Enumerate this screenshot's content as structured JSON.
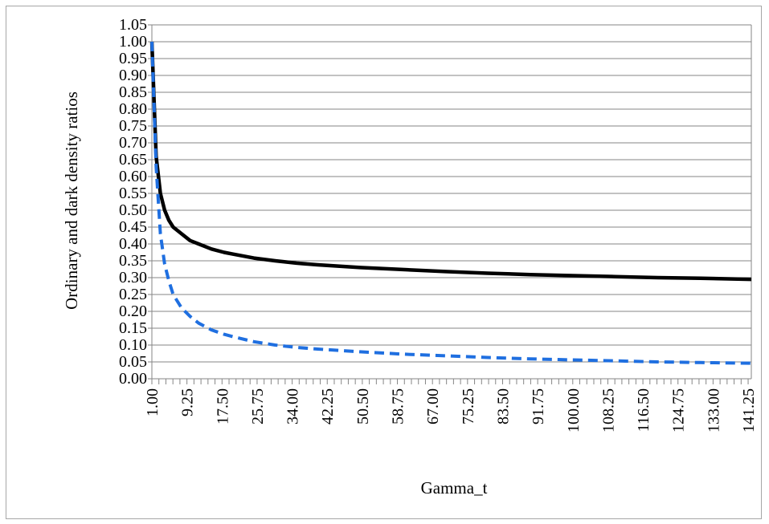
{
  "chart_data": {
    "type": "line",
    "xlabel": "Gamma_t",
    "ylabel": "Ordinary and dark density ratios",
    "x_tick_labels": [
      "1.00",
      "9.25",
      "17.50",
      "25.75",
      "34.00",
      "42.25",
      "50.50",
      "58.75",
      "67.00",
      "75.25",
      "83.50",
      "91.75",
      "100.00",
      "108.25",
      "116.50",
      "124.75",
      "133.00",
      "141.25"
    ],
    "y_tick_labels": [
      "0.00",
      "0.05",
      "0.10",
      "0.15",
      "0.20",
      "0.25",
      "0.30",
      "0.35",
      "0.40",
      "0.45",
      "0.50",
      "0.55",
      "0.60",
      "0.65",
      "0.70",
      "0.75",
      "0.80",
      "0.85",
      "0.90",
      "0.95",
      "1.00",
      "1.05"
    ],
    "xlim": [
      1.0,
      142.0
    ],
    "ylim": [
      0.0,
      1.05
    ],
    "grid": true,
    "legend": "none",
    "series": [
      {
        "color": "#000000",
        "line_style": "solid",
        "x": [
          1.0,
          2.0,
          3.0,
          4.0,
          5.0,
          6.0,
          8.0,
          10.0,
          12.0,
          15.0,
          18.0,
          20.0,
          25.0,
          30.0,
          35.0,
          40.0,
          50.0,
          60.0,
          70.0,
          80.0,
          90.0,
          100.0,
          110.0,
          120.0,
          130.0,
          142.0
        ],
        "values": [
          1.0,
          0.66,
          0.55,
          0.5,
          0.47,
          0.45,
          0.43,
          0.41,
          0.4,
          0.385,
          0.375,
          0.37,
          0.358,
          0.35,
          0.343,
          0.338,
          0.33,
          0.324,
          0.318,
          0.313,
          0.309,
          0.306,
          0.303,
          0.3,
          0.298,
          0.295
        ]
      },
      {
        "color": "#1f6fe0",
        "line_style": "dashed",
        "x": [
          1.0,
          2.0,
          3.0,
          4.0,
          5.0,
          6.0,
          8.0,
          10.0,
          12.0,
          15.0,
          18.0,
          20.0,
          25.0,
          30.0,
          35.0,
          40.0,
          50.0,
          60.0,
          70.0,
          80.0,
          90.0,
          100.0,
          110.0,
          120.0,
          130.0,
          142.0
        ],
        "values": [
          1.0,
          0.63,
          0.43,
          0.34,
          0.29,
          0.25,
          0.21,
          0.185,
          0.165,
          0.145,
          0.132,
          0.125,
          0.11,
          0.1,
          0.093,
          0.088,
          0.08,
          0.073,
          0.068,
          0.063,
          0.059,
          0.056,
          0.053,
          0.05,
          0.048,
          0.046
        ]
      }
    ]
  }
}
